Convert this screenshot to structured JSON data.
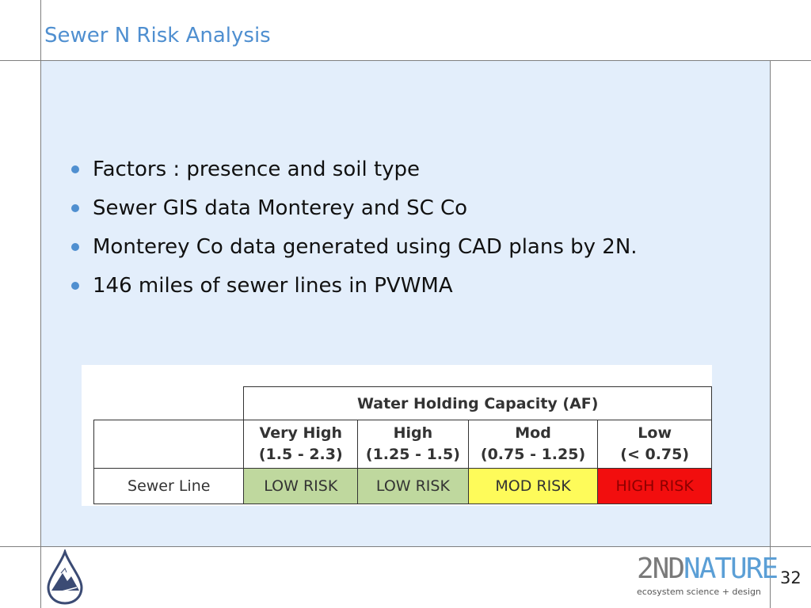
{
  "slide": {
    "title": "Sewer N Risk Analysis",
    "bullets": [
      "Factors : presence and soil type",
      "Sewer GIS data Monterey and SC Co",
      "Monterey Co data generated using CAD plans by 2N.",
      "146 miles of sewer lines in PVWMA"
    ],
    "table": {
      "header": "Water Holding Capacity (AF)",
      "columns": [
        {
          "name": "Very High",
          "range": "(1.5 - 2.3)"
        },
        {
          "name": "High",
          "range": "(1.25 - 1.5)"
        },
        {
          "name": "Mod",
          "range": "(0.75 - 1.25)"
        },
        {
          "name": "Low",
          "range": "(< 0.75)"
        }
      ],
      "row_label": "Sewer Line",
      "values": [
        "LOW RISK",
        "LOW RISK",
        "MOD RISK",
        "HIGH RISK"
      ]
    },
    "colors": {
      "title": "#4f8fd0",
      "content_bg": "#e3eefb",
      "low_risk": "#bfd89e",
      "mod_risk": "#fefb5a",
      "high_risk": "#f20e0e"
    },
    "footer": {
      "brand_part1": "2ND",
      "brand_part2": "NATURE",
      "brand_tagline": "ecosystem science + design",
      "left_logo_icon": "water-drop-mountain-icon",
      "page_number": "32"
    }
  }
}
